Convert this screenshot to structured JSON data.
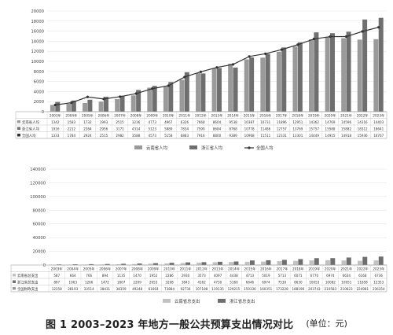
{
  "caption": {
    "title": "图 1  2003–2023 年地方一般公共预算支出情况对比",
    "unit": "(单位：元)"
  },
  "chart_data": [
    {
      "type": "bar",
      "categories": [
        "2003年",
        "2004年",
        "2005年",
        "2006年",
        "2007年",
        "2008年",
        "2009年",
        "2010年",
        "2011年",
        "2012年",
        "2013年",
        "2014年",
        "2015年",
        "2016年",
        "2017年",
        "2018年",
        "2019年",
        "2020年",
        "2021年",
        "2022年",
        "2023年"
      ],
      "series": [
        {
          "name": "云南省人均",
          "kind": "bar",
          "color": "#9a9a9a",
          "values": [
            1342,
            1583,
            1732,
            1993,
            2515,
            3236,
            4773,
            4967,
            6326,
            7668,
            8604,
            9538,
            10387,
            10731,
            11896,
            12951,
            14362,
            14769,
            14596,
            14316,
            14403
          ]
        },
        {
          "name": "浙江省人均",
          "kind": "bar",
          "color": "#6f6f6f",
          "values": [
            1916,
            2212,
            2384,
            2956,
            3171,
            4314,
            5123,
            5889,
            7834,
            7599,
            8684,
            8768,
            10778,
            11486,
            12757,
            13769,
            15757,
            15588,
            15882,
            18312,
            18641
          ]
        },
        {
          "name": "全国人均",
          "kind": "line",
          "color": "#333333",
          "values": [
            1333,
            1784,
            2924,
            2515,
            2982,
            3588,
            4573,
            5158,
            6883,
            7916,
            8800,
            9389,
            10968,
            11511,
            12331,
            13301,
            14449,
            14915,
            14918,
            15936,
            16767
          ]
        }
      ],
      "yticks": [
        0,
        2000,
        4000,
        6000,
        8000,
        10000,
        12000,
        14000,
        16000,
        18000,
        20000
      ],
      "ylim": [
        0,
        20000
      ],
      "table_rows": [
        {
          "label": "云南省人均",
          "values": [
            "1342",
            "1583",
            "1732",
            "1993",
            "2515",
            "3236",
            "4773",
            "4967",
            "6326",
            "7668",
            "8604",
            "9538",
            "10387",
            "10731",
            "11896",
            "12951",
            "14362",
            "14769",
            "14596",
            "14316",
            "14403"
          ]
        },
        {
          "label": "浙江省人均",
          "values": [
            "1916",
            "2212",
            "2384",
            "2956",
            "3171",
            "4314",
            "5123",
            "5889",
            "7834",
            "7599",
            "8684",
            "8768",
            "10778",
            "11486",
            "12757",
            "13769",
            "15757",
            "15588",
            "15882",
            "18312",
            "18641"
          ]
        },
        {
          "label": "全国人均",
          "values": [
            "1333",
            "1784",
            "2924",
            "2515",
            "2982",
            "3588",
            "4573",
            "5158",
            "6883",
            "7916",
            "8800",
            "9389",
            "10968",
            "11511",
            "12331",
            "13301",
            "14449",
            "14915",
            "14918",
            "15936",
            "16767"
          ]
        }
      ],
      "legend": [
        "云南省人均",
        "浙江省人均",
        "全国人均"
      ]
    },
    {
      "type": "bar",
      "categories": [
        "2003年",
        "2004年",
        "2005年",
        "2006年",
        "2007年",
        "2008年",
        "2009年",
        "2010年",
        "2011年",
        "2012年",
        "2013年",
        "2014年",
        "2015年",
        "2016年",
        "2017年",
        "2018年",
        "2019年",
        "2020年",
        "2021年",
        "2022年",
        "2023年"
      ],
      "series": [
        {
          "name": "云南省总支出",
          "kind": "bar",
          "color": "#c2c2c2",
          "values": [
            587,
            664,
            766,
            894,
            1135,
            1470,
            1952,
            2286,
            2930,
            3573,
            4097,
            4438,
            4713,
            5019,
            5713,
            6071,
            6770,
            6974,
            6634,
            6168,
            6736
          ]
        },
        {
          "name": "浙江省总支出",
          "kind": "bar",
          "color": "#6f6f6f",
          "values": [
            897,
            1063,
            1266,
            1472,
            1807,
            2209,
            2653,
            3208,
            3843,
            4162,
            4730,
            5160,
            6646,
            6974,
            7530,
            8630,
            10053,
            10082,
            10951,
            11858,
            12353
          ]
        }
      ],
      "yticks": [
        0,
        20000,
        40000,
        60000,
        80000,
        100000,
        120000,
        140000
      ],
      "ylim": [
        0,
        140000
      ],
      "table_rows": [
        {
          "label": "云南省总支出",
          "values": [
            "587",
            "664",
            "766",
            "894",
            "1135",
            "1470",
            "1952",
            "2286",
            "2930",
            "3573",
            "4097",
            "4438",
            "4713",
            "5019",
            "5713",
            "6071",
            "6770",
            "6974",
            "6634",
            "6168",
            "6736"
          ]
        },
        {
          "label": "浙江省总支出",
          "values": [
            "897",
            "1063",
            "1266",
            "1472",
            "1807",
            "2209",
            "2653",
            "3208",
            "3843",
            "4162",
            "4730",
            "5160",
            "6646",
            "6974",
            "7530",
            "8630",
            "10053",
            "10082",
            "10951",
            "11858",
            "12353"
          ]
        },
        {
          "label": "全国财政支出",
          "values": [
            "12358",
            "28193",
            "33514",
            "38431",
            "38359",
            "49248",
            "61664",
            "73884",
            "92734",
            "107188",
            "119135",
            "129215",
            "150336",
            "160351",
            "173228",
            "188196",
            "203743",
            "210583",
            "210623",
            "224981",
            "236354"
          ]
        }
      ],
      "legend": [
        "云南省总支出",
        "浙江省总支出"
      ]
    }
  ]
}
